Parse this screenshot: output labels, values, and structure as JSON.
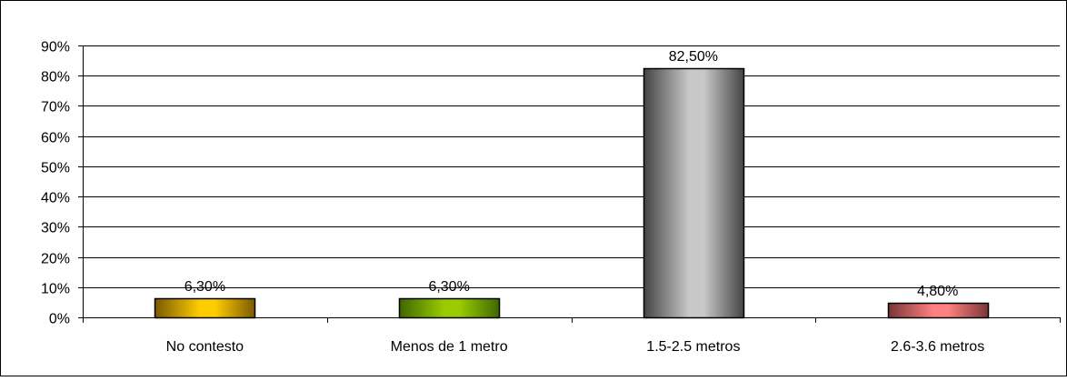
{
  "chart_data": {
    "type": "bar",
    "title": "",
    "xlabel": "",
    "ylabel": "",
    "categories": [
      "No contesto",
      "Menos de 1 metro",
      "1.5-2.5 metros",
      "2.6-3.6 metros"
    ],
    "values": [
      6.3,
      6.3,
      82.5,
      4.8
    ],
    "data_labels": [
      "6,30%",
      "6,30%",
      "82,50%",
      "4,80%"
    ],
    "ylim": [
      0,
      90
    ],
    "yticks": [
      0,
      10,
      20,
      30,
      40,
      50,
      60,
      70,
      80,
      90
    ],
    "ytick_labels": [
      "0%",
      "10%",
      "20%",
      "30%",
      "40%",
      "50%",
      "60%",
      "70%",
      "80%",
      "90%"
    ],
    "grid": true,
    "legend": "none",
    "bar_colors": [
      {
        "dark": "#7a5a00",
        "light": "#ffcc00"
      },
      {
        "dark": "#3f6600",
        "light": "#99cc00"
      },
      {
        "dark": "#444444",
        "light": "#c8c8c8"
      },
      {
        "dark": "#7a3535",
        "light": "#ff8080"
      }
    ]
  }
}
